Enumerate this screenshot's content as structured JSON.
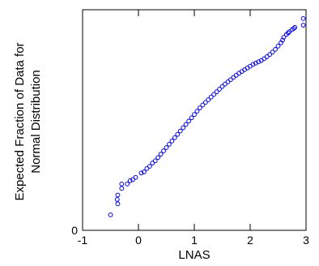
{
  "chart_data": {
    "type": "scatter",
    "title": "",
    "xlabel": "LNAS",
    "ylabel_lines": [
      "Expected Fraction of Data for",
      "Normal Distribution"
    ],
    "xlim": [
      -1,
      3
    ],
    "xticks": [
      "-1",
      "0",
      "1",
      "2",
      "3"
    ],
    "yticks": [
      "0"
    ],
    "grid": false,
    "marker": "open-circle",
    "color": "#0000ff",
    "points": [
      [
        -0.5,
        0.07
      ],
      [
        -0.38,
        0.14
      ],
      [
        -0.37,
        0.12
      ],
      [
        -0.37,
        0.16
      ],
      [
        -0.3,
        0.19
      ],
      [
        -0.3,
        0.21
      ],
      [
        -0.2,
        0.21
      ],
      [
        -0.15,
        0.225
      ],
      [
        -0.1,
        0.23
      ],
      [
        -0.05,
        0.24
      ],
      [
        0.05,
        0.26
      ],
      [
        0.1,
        0.265
      ],
      [
        0.15,
        0.28
      ],
      [
        0.2,
        0.29
      ],
      [
        0.25,
        0.305
      ],
      [
        0.3,
        0.315
      ],
      [
        0.35,
        0.33
      ],
      [
        0.4,
        0.345
      ],
      [
        0.45,
        0.36
      ],
      [
        0.5,
        0.375
      ],
      [
        0.55,
        0.39
      ],
      [
        0.6,
        0.405
      ],
      [
        0.65,
        0.42
      ],
      [
        0.7,
        0.435
      ],
      [
        0.75,
        0.45
      ],
      [
        0.8,
        0.465
      ],
      [
        0.85,
        0.48
      ],
      [
        0.9,
        0.495
      ],
      [
        0.95,
        0.51
      ],
      [
        1.0,
        0.525
      ],
      [
        1.05,
        0.54
      ],
      [
        1.1,
        0.555
      ],
      [
        1.15,
        0.568
      ],
      [
        1.2,
        0.58
      ],
      [
        1.25,
        0.592
      ],
      [
        1.3,
        0.604
      ],
      [
        1.35,
        0.616
      ],
      [
        1.4,
        0.628
      ],
      [
        1.45,
        0.64
      ],
      [
        1.5,
        0.652
      ],
      [
        1.55,
        0.663
      ],
      [
        1.6,
        0.673
      ],
      [
        1.65,
        0.683
      ],
      [
        1.7,
        0.693
      ],
      [
        1.75,
        0.703
      ],
      [
        1.8,
        0.712
      ],
      [
        1.85,
        0.72
      ],
      [
        1.9,
        0.728
      ],
      [
        1.95,
        0.736
      ],
      [
        2.0,
        0.744
      ],
      [
        2.05,
        0.752
      ],
      [
        2.1,
        0.758
      ],
      [
        2.15,
        0.764
      ],
      [
        2.2,
        0.77
      ],
      [
        2.25,
        0.778
      ],
      [
        2.3,
        0.787
      ],
      [
        2.35,
        0.797
      ],
      [
        2.4,
        0.808
      ],
      [
        2.45,
        0.82
      ],
      [
        2.5,
        0.835
      ],
      [
        2.55,
        0.85
      ],
      [
        2.58,
        0.862
      ],
      [
        2.6,
        0.875
      ],
      [
        2.65,
        0.888
      ],
      [
        2.68,
        0.895
      ],
      [
        2.7,
        0.9
      ],
      [
        2.75,
        0.91
      ],
      [
        2.78,
        0.915
      ],
      [
        2.8,
        0.92
      ],
      [
        2.95,
        0.93
      ],
      [
        2.95,
        0.96
      ]
    ]
  }
}
